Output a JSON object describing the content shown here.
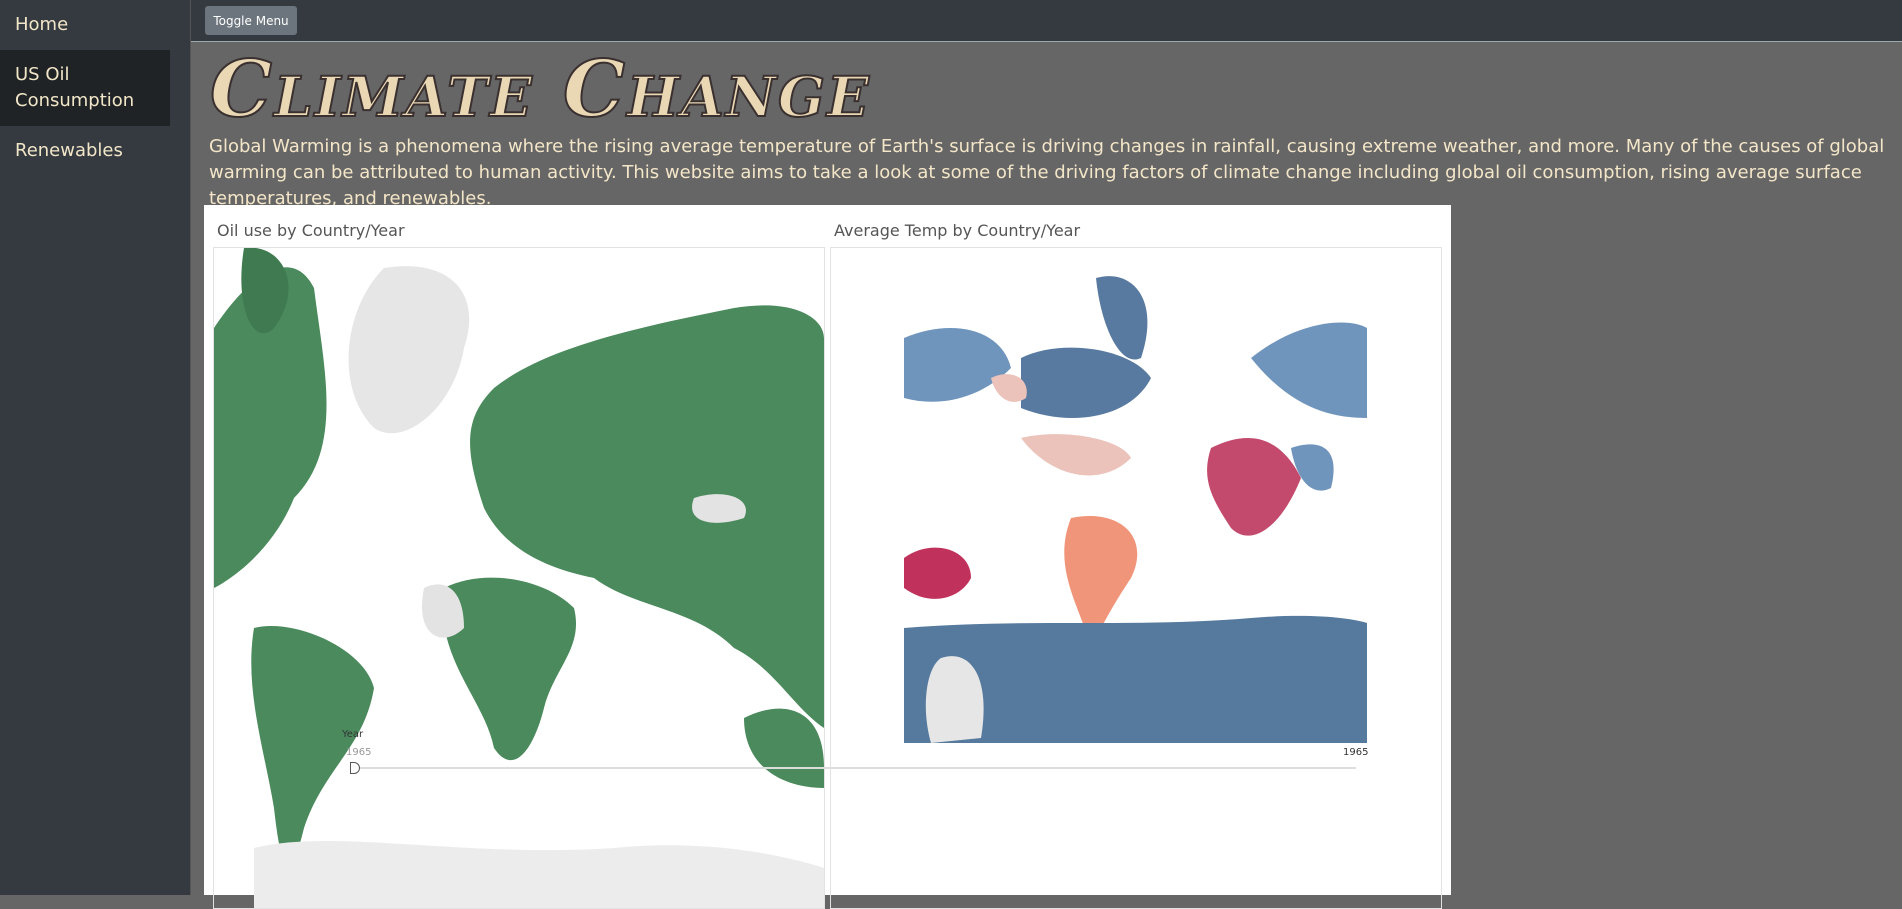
{
  "sidebar": {
    "items": [
      "Home",
      "US Oil Consumption",
      "Renewables"
    ]
  },
  "topbar": {
    "button": "Toggle Menu"
  },
  "header": {
    "title": "Climate Change",
    "intro": "Global Warming is a phenomena where the rising average temperature of Earth's surface is driving changes in rainfall, causing extreme weather, and more. Many of the causes of global warming can be attributed to human activity. This website aims to take a look at some of the driving factors of climate change including global oil consumption, rising average surface temperatures, and renewables."
  },
  "dashboard": {
    "panels": [
      {
        "title": "Oil use by Country/Year"
      },
      {
        "title": "Average Temp by Country/Year"
      }
    ],
    "slider": {
      "label": "Year",
      "min_label": "1965",
      "max_label": "1965"
    }
  }
}
